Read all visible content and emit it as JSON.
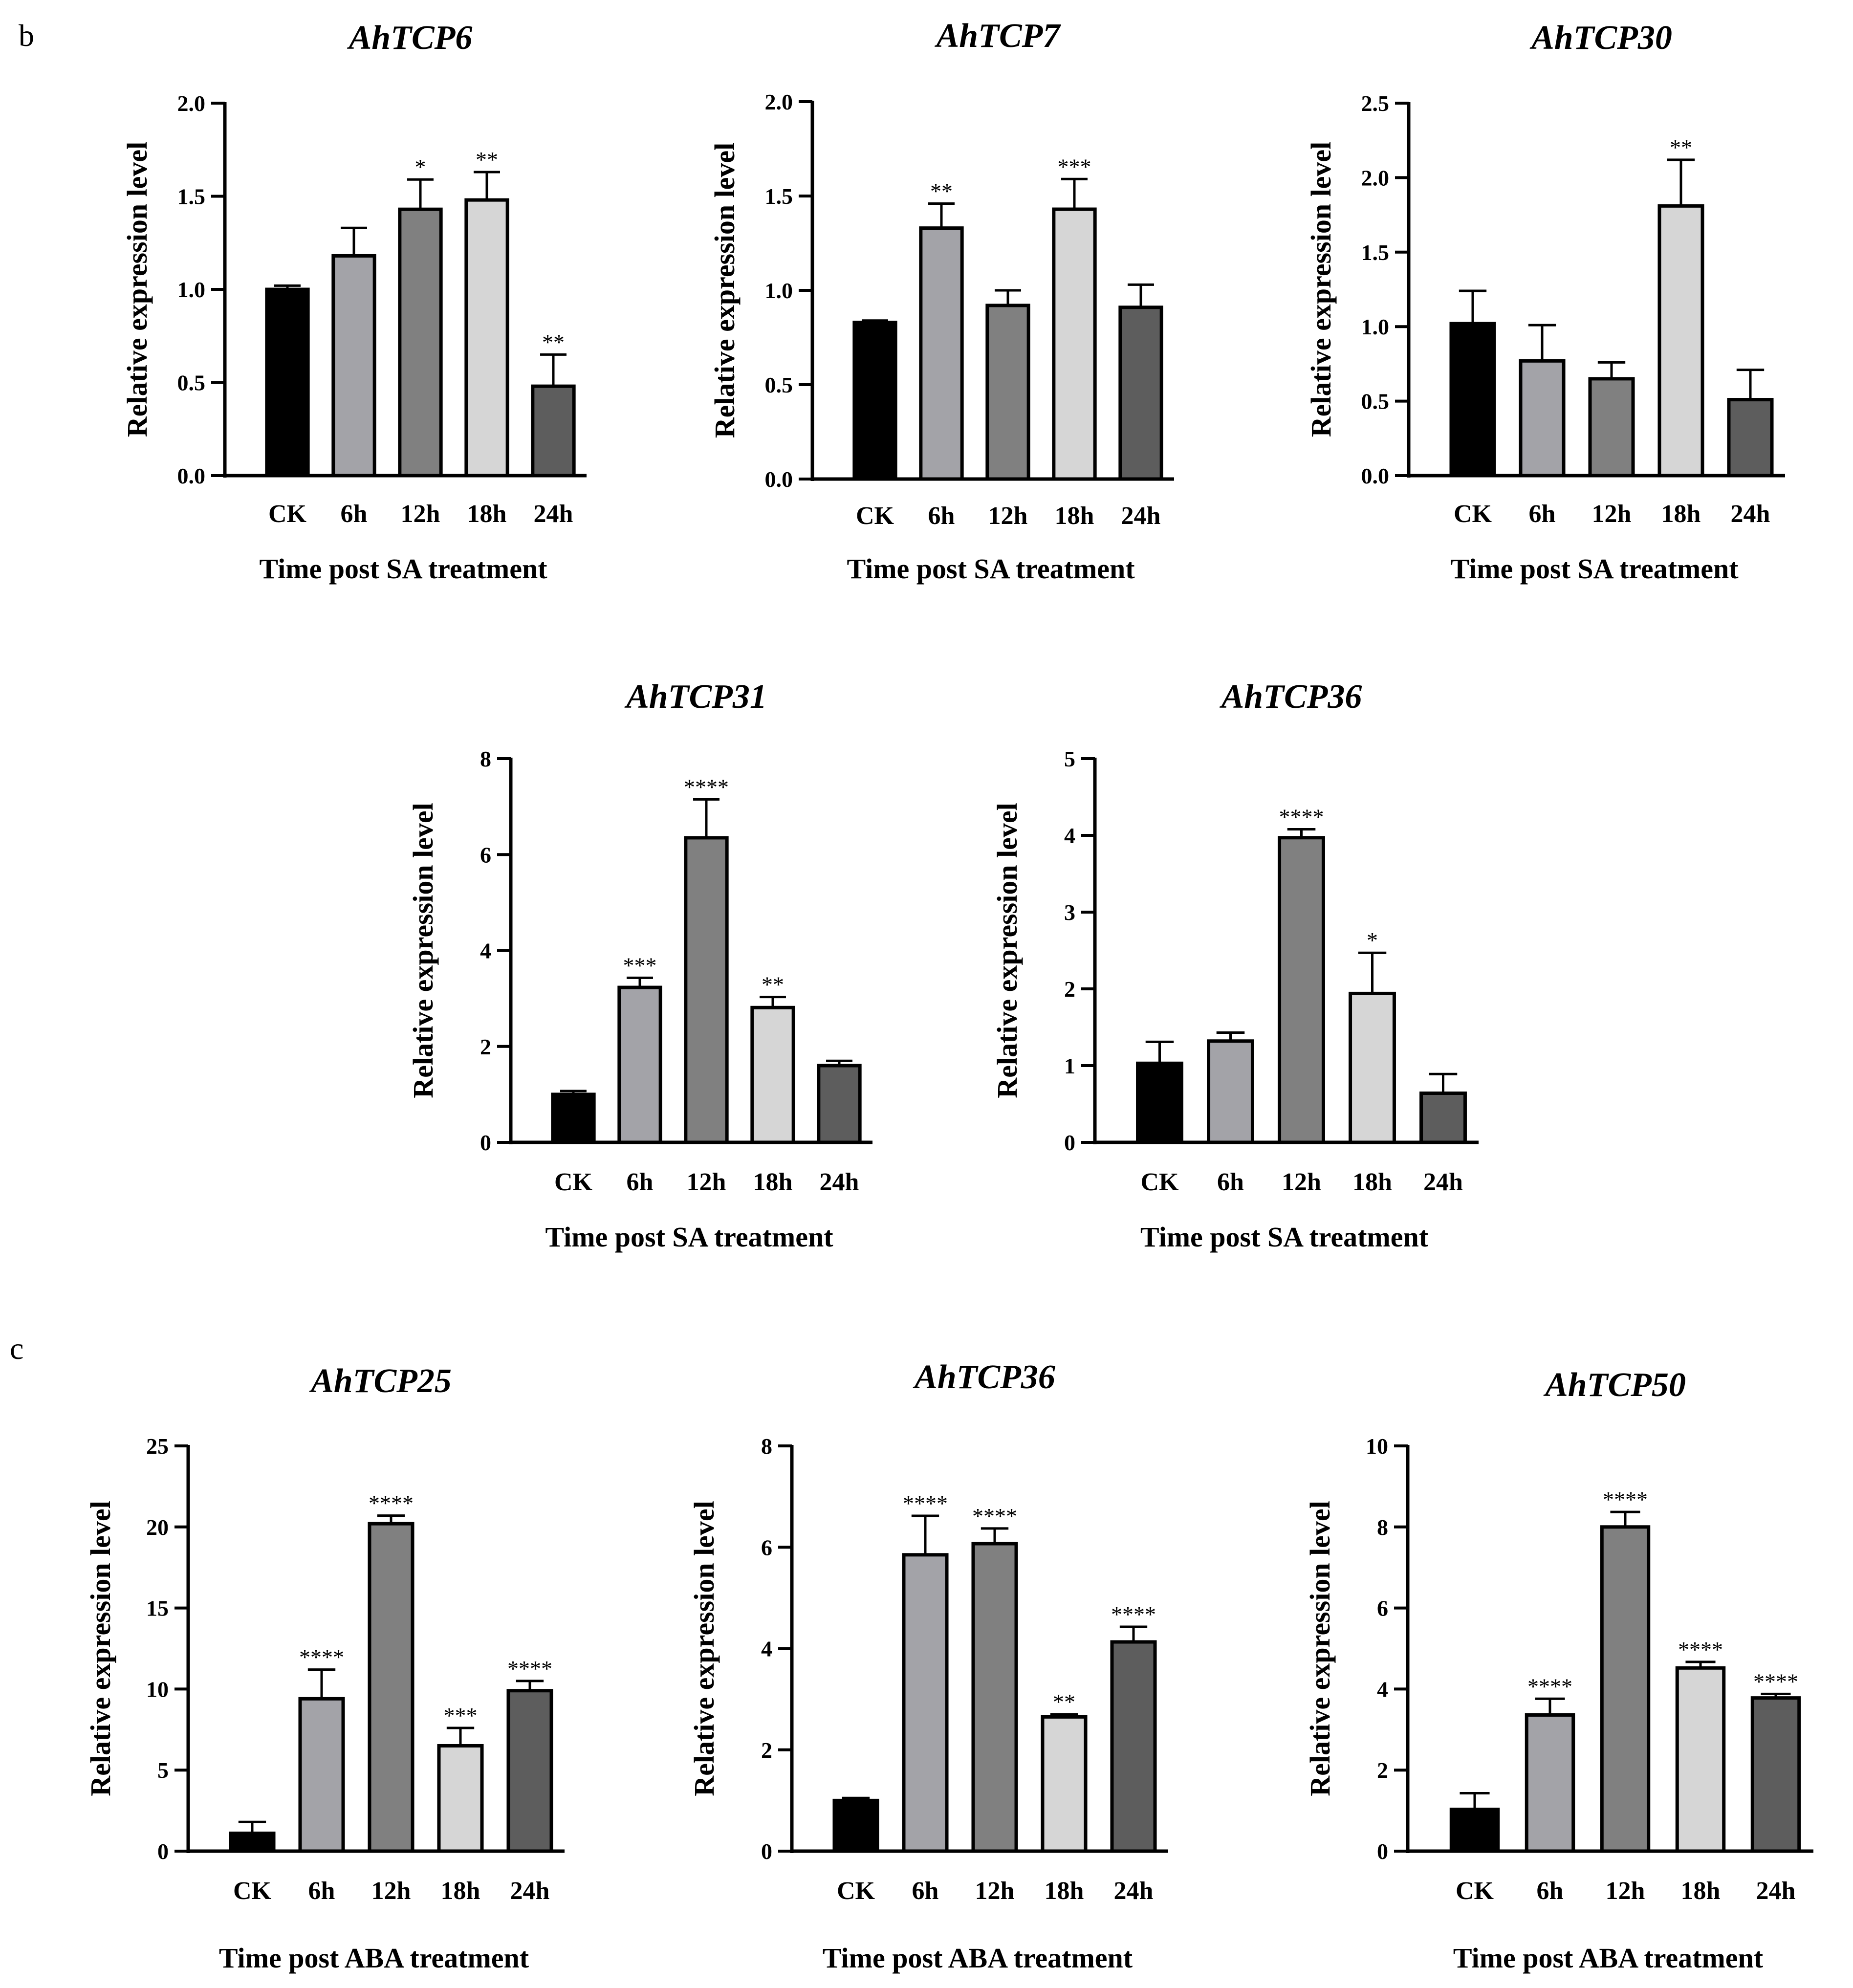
{
  "panel_labels": {
    "b": "b",
    "c": "c"
  },
  "colors": {
    "CK": "#000000",
    "6h": "#a3a3a8",
    "12h": "#808080",
    "18h": "#d6d6d6",
    "24h": "#5d5d5d",
    "axis": "#000000"
  },
  "chart_data": [
    {
      "type": "bar",
      "panel": "b",
      "title": "AhTCP6",
      "xlabel": "Time post SA treatment",
      "ylabel": "Relative expression level",
      "categories": [
        "CK",
        "6h",
        "12h",
        "18h",
        "24h"
      ],
      "values": [
        1.0,
        1.18,
        1.43,
        1.48,
        0.48
      ],
      "errors": [
        0.02,
        0.15,
        0.16,
        0.15,
        0.17
      ],
      "significance": [
        "",
        "",
        "*",
        "**",
        "**"
      ],
      "ylim": [
        0,
        2.0
      ],
      "yticks": [
        0,
        0.5,
        1.0,
        1.5,
        2.0
      ],
      "ytick_labels": [
        "0.0",
        "0.5",
        "1.0",
        "1.5",
        "2.0"
      ]
    },
    {
      "type": "bar",
      "panel": "b",
      "title": "AhTCP7",
      "xlabel": "Time post SA treatment",
      "ylabel": "Relative expression level",
      "categories": [
        "CK",
        "6h",
        "12h",
        "18h",
        "24h"
      ],
      "values": [
        0.83,
        1.33,
        0.92,
        1.43,
        0.91
      ],
      "errors": [
        0.01,
        0.13,
        0.08,
        0.16,
        0.12
      ],
      "significance": [
        "",
        "**",
        "",
        "***",
        ""
      ],
      "ylim": [
        0,
        2.0
      ],
      "yticks": [
        0,
        0.5,
        1.0,
        1.5,
        2.0
      ],
      "ytick_labels": [
        "0.0",
        "0.5",
        "1.0",
        "1.5",
        "2.0"
      ]
    },
    {
      "type": "bar",
      "panel": "b",
      "title": "AhTCP30",
      "xlabel": "Time post SA treatment",
      "ylabel": "Relative expression level",
      "categories": [
        "CK",
        "6h",
        "12h",
        "18h",
        "24h"
      ],
      "values": [
        1.02,
        0.77,
        0.65,
        1.81,
        0.51
      ],
      "errors": [
        0.22,
        0.24,
        0.11,
        0.31,
        0.2
      ],
      "significance": [
        "",
        "",
        "",
        "**",
        ""
      ],
      "ylim": [
        0,
        2.5
      ],
      "yticks": [
        0,
        0.5,
        1.0,
        1.5,
        2.0,
        2.5
      ],
      "ytick_labels": [
        "0.0",
        "0.5",
        "1.0",
        "1.5",
        "2.0",
        "2.5"
      ]
    },
    {
      "type": "bar",
      "panel": "b",
      "title": "AhTCP31",
      "xlabel": "Time post SA treatment",
      "ylabel": "Relative expression level",
      "categories": [
        "CK",
        "6h",
        "12h",
        "18h",
        "24h"
      ],
      "values": [
        1.0,
        3.23,
        6.35,
        2.81,
        1.6
      ],
      "errors": [
        0.07,
        0.2,
        0.8,
        0.22,
        0.1
      ],
      "significance": [
        "",
        "***",
        "****",
        "**",
        ""
      ],
      "ylim": [
        0,
        8
      ],
      "yticks": [
        0,
        2,
        4,
        6,
        8
      ],
      "ytick_labels": [
        "0",
        "2",
        "4",
        "6",
        "8"
      ]
    },
    {
      "type": "bar",
      "panel": "b",
      "title": "AhTCP36",
      "xlabel": "Time post SA treatment",
      "ylabel": "Relative expression level",
      "categories": [
        "CK",
        "6h",
        "12h",
        "18h",
        "24h"
      ],
      "values": [
        1.03,
        1.32,
        3.97,
        1.94,
        0.64
      ],
      "errors": [
        0.28,
        0.11,
        0.11,
        0.53,
        0.25
      ],
      "significance": [
        "",
        "",
        "****",
        "*",
        ""
      ],
      "ylim": [
        0,
        5
      ],
      "yticks": [
        0,
        1,
        2,
        3,
        4,
        5
      ],
      "ytick_labels": [
        "0",
        "1",
        "2",
        "3",
        "4",
        "5"
      ]
    },
    {
      "type": "bar",
      "panel": "c",
      "title": "AhTCP25",
      "xlabel": "Time post ABA treatment",
      "ylabel": "Relative expression level",
      "categories": [
        "CK",
        "6h",
        "12h",
        "18h",
        "24h"
      ],
      "values": [
        1.1,
        9.4,
        20.2,
        6.5,
        9.9
      ],
      "errors": [
        0.7,
        1.8,
        0.5,
        1.1,
        0.6
      ],
      "significance": [
        "",
        "****",
        "****",
        "***",
        "****"
      ],
      "ylim": [
        0,
        25
      ],
      "yticks": [
        0,
        5,
        10,
        15,
        20,
        25
      ],
      "ytick_labels": [
        "0",
        "5",
        "10",
        "15",
        "20",
        "25"
      ]
    },
    {
      "type": "bar",
      "panel": "c",
      "title": "AhTCP36",
      "xlabel": "Time post ABA treatment",
      "ylabel": "Relative expression level",
      "categories": [
        "CK",
        "6h",
        "12h",
        "18h",
        "24h"
      ],
      "values": [
        1.0,
        5.85,
        6.07,
        2.65,
        4.13
      ],
      "errors": [
        0.05,
        0.77,
        0.3,
        0.05,
        0.3
      ],
      "significance": [
        "",
        "****",
        "****",
        "**",
        "****"
      ],
      "ylim": [
        0,
        8
      ],
      "yticks": [
        0,
        2,
        4,
        6,
        8
      ],
      "ytick_labels": [
        "0",
        "2",
        "4",
        "6",
        "8"
      ]
    },
    {
      "type": "bar",
      "panel": "c",
      "title": "AhTCP50",
      "xlabel": "Time post ABA treatment",
      "ylabel": "Relative expression level",
      "categories": [
        "CK",
        "6h",
        "12h",
        "18h",
        "24h"
      ],
      "values": [
        1.03,
        3.36,
        8.0,
        4.52,
        3.78
      ],
      "errors": [
        0.4,
        0.4,
        0.37,
        0.15,
        0.1
      ],
      "significance": [
        "",
        "****",
        "****",
        "****",
        "****"
      ],
      "ylim": [
        0,
        10
      ],
      "yticks": [
        0,
        2,
        4,
        6,
        8,
        10
      ],
      "ytick_labels": [
        "0",
        "2",
        "4",
        "6",
        "8",
        "10"
      ]
    }
  ]
}
